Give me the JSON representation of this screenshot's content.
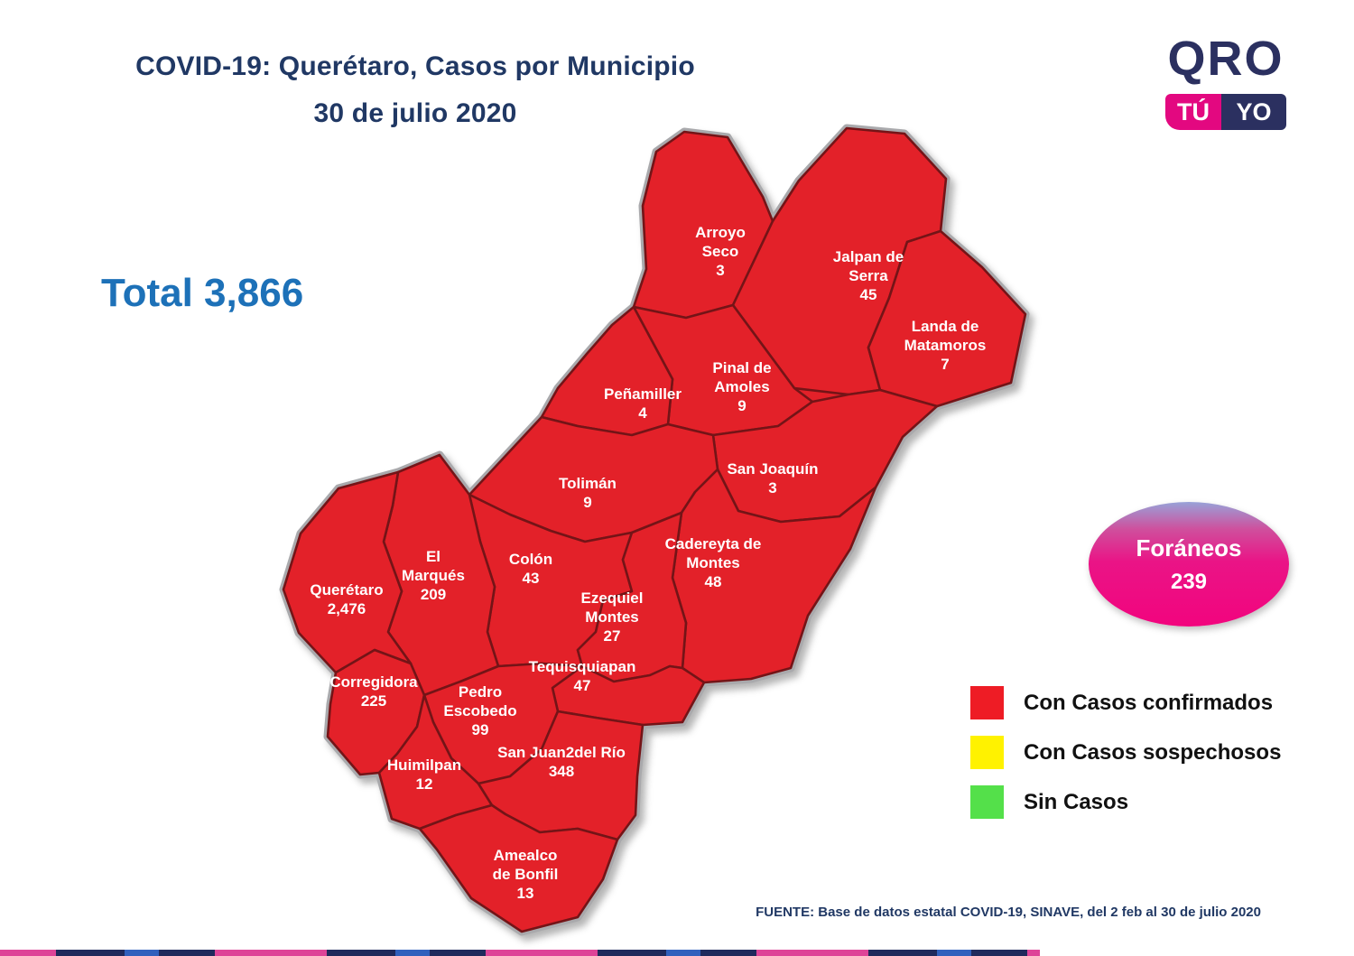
{
  "title": {
    "line1": "COVID-19: Querétaro, Casos por Municipio",
    "line2": "30 de julio 2020"
  },
  "logo": {
    "top": "QRO",
    "tu": "TÚ",
    "yo": "YO"
  },
  "total": {
    "display": "Total 3,866"
  },
  "foraneos": {
    "label": "Foráneos",
    "value": "239"
  },
  "legend": {
    "items": [
      {
        "label": "Con Casos confirmados",
        "color": "#ee1c25"
      },
      {
        "label": "Con Casos sospechosos",
        "color": "#fff200"
      },
      {
        "label": "Sin Casos",
        "color": "#54e04a"
      }
    ]
  },
  "source": "FUENTE: Base de datos estatal COVID-19, SINAVE, del 2 feb al 30 de julio 2020",
  "colors": {
    "map_fill": "#e32129",
    "map_border": "#741417",
    "state_border": "#a9a9ac",
    "label_text": "#ffffff"
  },
  "map": {
    "state": "Querétaro",
    "municipalities": [
      {
        "id": "arroyo-seco",
        "name": "Arroyo Seco",
        "lines": [
          "Arroyo",
          "Seco"
        ],
        "cases": "3"
      },
      {
        "id": "jalpan",
        "name": "Jalpan de Serra",
        "lines": [
          "Jalpan de",
          "Serra"
        ],
        "cases": "45"
      },
      {
        "id": "landa",
        "name": "Landa de Matamoros",
        "lines": [
          "Landa de",
          "Matamoros"
        ],
        "cases": "7"
      },
      {
        "id": "pinal",
        "name": "Pinal de Amoles",
        "lines": [
          "Pinal de",
          "Amoles"
        ],
        "cases": "9"
      },
      {
        "id": "penamiller",
        "name": "Peñamiller",
        "lines": [
          "Peñamiller"
        ],
        "cases": "4"
      },
      {
        "id": "san-joaquin",
        "name": "San Joaquín",
        "lines": [
          "San Joaquín"
        ],
        "cases": "3"
      },
      {
        "id": "toliman",
        "name": "Tolimán",
        "lines": [
          "Tolimán"
        ],
        "cases": "9"
      },
      {
        "id": "cadereyta",
        "name": "Cadereyta de Montes",
        "lines": [
          "Cadereyta de",
          "Montes"
        ],
        "cases": "48"
      },
      {
        "id": "colon",
        "name": "Colón",
        "lines": [
          "Colón"
        ],
        "cases": "43"
      },
      {
        "id": "el-marques",
        "name": "El Marqués",
        "lines": [
          "El",
          "Marqués"
        ],
        "cases": "209"
      },
      {
        "id": "queretaro",
        "name": "Querétaro",
        "lines": [
          "Querétaro"
        ],
        "cases": "2,476"
      },
      {
        "id": "ezequiel-montes",
        "name": "Ezequiel Montes",
        "lines": [
          "Ezequiel",
          "Montes"
        ],
        "cases": "27"
      },
      {
        "id": "corregidora",
        "name": "Corregidora",
        "lines": [
          "Corregidora"
        ],
        "cases": "225"
      },
      {
        "id": "tequisquiapan",
        "name": "Tequisquiapan",
        "lines": [
          "Tequisquiapan"
        ],
        "cases": "47"
      },
      {
        "id": "pedro-escobedo",
        "name": "Pedro Escobedo",
        "lines": [
          "Pedro",
          "Escobedo"
        ],
        "cases": "99"
      },
      {
        "id": "huimilpan",
        "name": "Huimilpan",
        "lines": [
          "Huimilpan"
        ],
        "cases": "12"
      },
      {
        "id": "san-juan-del-rio",
        "name": "San Juan2del Río",
        "lines": [
          "San Juan2del Río"
        ],
        "cases": "348"
      },
      {
        "id": "amealco",
        "name": "Amealco de Bonfil",
        "lines": [
          "Amealco",
          "de Bonfil"
        ],
        "cases": "13"
      }
    ]
  }
}
